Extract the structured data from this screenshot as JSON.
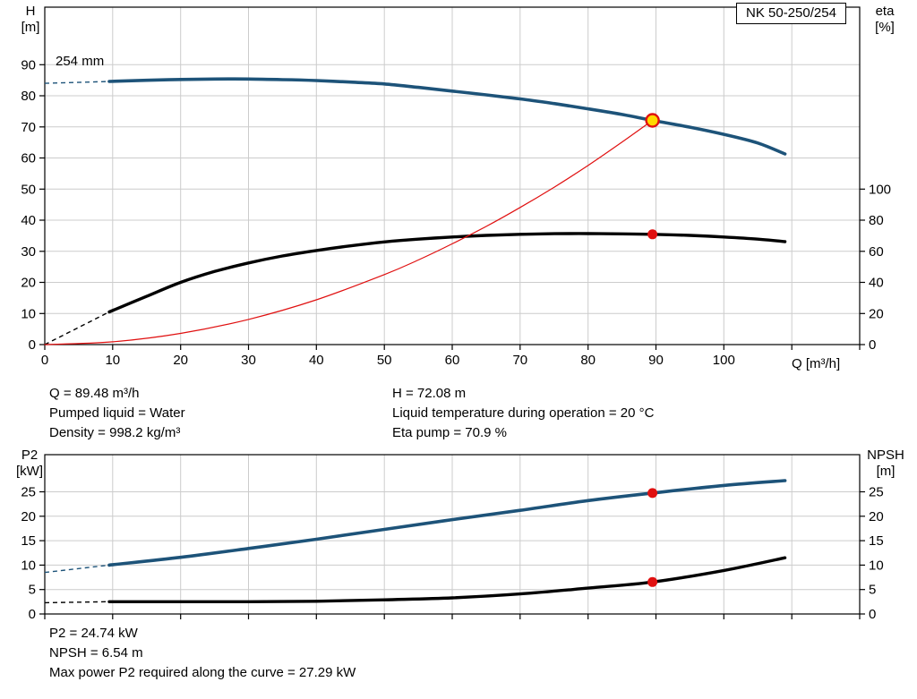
{
  "model_label": "NK 50-250/254",
  "colors": {
    "curve_blue": "#1d5379",
    "curve_black": "#000000",
    "curve_red": "#e01010",
    "duty_fill": "#ffd800",
    "grid": "#cccccc",
    "frame": "#000000"
  },
  "chart_data": [
    {
      "type": "line",
      "name": "performance-curves",
      "annotation": "254 mm",
      "axes": {
        "x": {
          "label": "Q [m³/h]",
          "range": [
            0,
            120
          ],
          "ticks": [
            0,
            10,
            20,
            30,
            40,
            50,
            60,
            70,
            80,
            90,
            100
          ]
        },
        "left": {
          "label_lines": [
            "H",
            "[m]"
          ],
          "range": [
            0,
            108.5
          ],
          "ticks": [
            0,
            10,
            20,
            30,
            40,
            50,
            60,
            70,
            80,
            90
          ]
        },
        "right": {
          "label_lines": [
            "eta",
            "[%]"
          ],
          "range": [
            0,
            217
          ],
          "ticks": [
            0,
            20,
            40,
            60,
            80,
            100
          ]
        }
      },
      "series": [
        {
          "name": "head-curve",
          "color": "#1d5379",
          "width": 3.6,
          "axis": "left",
          "dashed_lead": {
            "q": [
              0,
              9.5
            ],
            "v": [
              84.0,
              84.6
            ]
          },
          "q": [
            9.5,
            15,
            20,
            25,
            30,
            35,
            40,
            45,
            50,
            55,
            60,
            65,
            70,
            75,
            80,
            85,
            89.48,
            95,
            100,
            105,
            109
          ],
          "v": [
            84.6,
            85.0,
            85.25,
            85.4,
            85.4,
            85.2,
            84.9,
            84.4,
            83.8,
            82.7,
            81.5,
            80.3,
            79.0,
            77.5,
            75.8,
            74.0,
            72.08,
            69.9,
            67.6,
            64.8,
            61.3
          ]
        },
        {
          "name": "efficiency-curve",
          "color": "#000000",
          "width": 3.4,
          "axis": "right",
          "dashed_lead": {
            "q": [
              0,
              9.5
            ],
            "v": [
              0,
              21
            ]
          },
          "q": [
            9.5,
            15,
            20,
            25,
            30,
            35,
            40,
            45,
            50,
            55,
            60,
            65,
            70,
            75,
            80,
            85,
            89.48,
            95,
            100,
            105,
            109
          ],
          "v": [
            21,
            31,
            40,
            47,
            52.5,
            57,
            60.5,
            63.5,
            66,
            67.8,
            69.2,
            70.2,
            70.9,
            71.3,
            71.4,
            71.2,
            70.9,
            70.2,
            69.2,
            67.8,
            66.2
          ]
        },
        {
          "name": "system-curve",
          "color": "#e01010",
          "width": 1.2,
          "axis": "left",
          "q": [
            0,
            10,
            20,
            30,
            40,
            50,
            55,
            60,
            65,
            70,
            75,
            80,
            85,
            89.48
          ],
          "v": [
            0,
            0.9,
            3.6,
            8.1,
            14.4,
            22.5,
            27.2,
            32.4,
            38.0,
            44.1,
            50.6,
            57.6,
            65.1,
            72.08
          ]
        }
      ],
      "markers": [
        {
          "name": "duty-point-head",
          "q": 89.48,
          "v": 72.08,
          "axis": "left",
          "style": "duty"
        },
        {
          "name": "duty-point-eta",
          "q": 89.48,
          "v": 70.9,
          "axis": "right",
          "style": "dot"
        }
      ]
    },
    {
      "type": "line",
      "name": "power-npsh-curves",
      "axes": {
        "x": {
          "label": "",
          "range": [
            0,
            120
          ],
          "ticks": []
        },
        "left": {
          "label_lines": [
            "P2",
            "[kW]"
          ],
          "range": [
            0,
            32.6
          ],
          "ticks": [
            0,
            5,
            10,
            15,
            20,
            25
          ]
        },
        "right": {
          "label_lines": [
            "NPSH",
            "[m]"
          ],
          "range": [
            0,
            32.6
          ],
          "ticks": [
            0,
            5,
            10,
            15,
            20,
            25
          ]
        }
      },
      "series": [
        {
          "name": "p2-curve",
          "color": "#1d5379",
          "width": 3.6,
          "axis": "left",
          "dashed_lead": {
            "q": [
              0,
              9.5
            ],
            "v": [
              8.5,
              10.0
            ]
          },
          "q": [
            9.5,
            20,
            30,
            40,
            50,
            60,
            70,
            80,
            89.48,
            100,
            109
          ],
          "v": [
            10.0,
            11.6,
            13.4,
            15.3,
            17.3,
            19.3,
            21.2,
            23.2,
            24.74,
            26.3,
            27.29
          ]
        },
        {
          "name": "npsh-curve",
          "color": "#000000",
          "width": 3.4,
          "axis": "right",
          "dashed_lead": {
            "q": [
              0,
              9.5
            ],
            "v": [
              2.3,
              2.5
            ]
          },
          "q": [
            9.5,
            20,
            30,
            40,
            50,
            60,
            70,
            80,
            89.48,
            100,
            109
          ],
          "v": [
            2.5,
            2.5,
            2.5,
            2.6,
            2.9,
            3.3,
            4.1,
            5.3,
            6.54,
            8.9,
            11.5
          ]
        }
      ],
      "markers": [
        {
          "name": "duty-point-p2",
          "q": 89.48,
          "v": 24.74,
          "axis": "left",
          "style": "dot"
        },
        {
          "name": "duty-point-npsh",
          "q": 89.48,
          "v": 6.54,
          "axis": "right",
          "style": "dot"
        }
      ]
    }
  ],
  "operating_info": {
    "left": [
      "Q = 89.48 m³/h",
      "Pumped liquid = Water",
      "Density = 998.2 kg/m³"
    ],
    "right": [
      "H = 72.08 m",
      "Liquid temperature during operation = 20 °C",
      "Eta pump = 70.9 %"
    ]
  },
  "power_info": [
    "P2 = 24.74 kW",
    "NPSH = 6.54 m",
    "Max power P2 required along the curve = 27.29 kW"
  ]
}
